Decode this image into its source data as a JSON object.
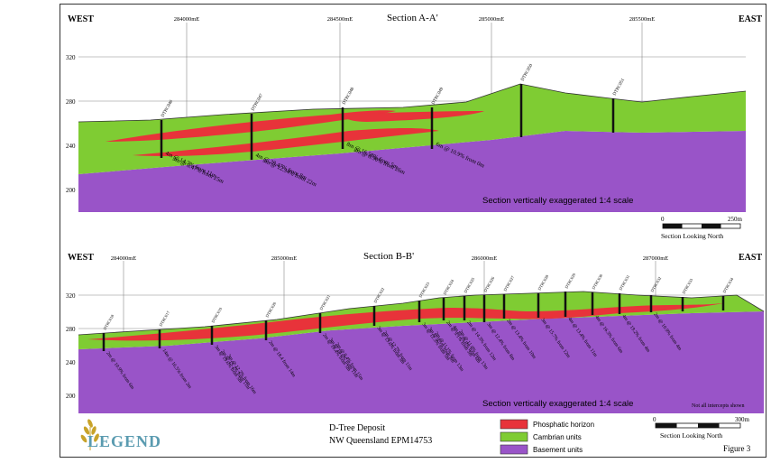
{
  "colors": {
    "phosphatic": "#e8333a",
    "cambrian": "#7fcc33",
    "basement": "#9954c8",
    "frame": "#333333"
  },
  "panel_a": {
    "west": "WEST",
    "east": "EAST",
    "title": "Section A-A'",
    "eastings": [
      "284000mE",
      "284500mE",
      "285000mE",
      "285500mE"
    ],
    "elevations": [
      "320",
      "280",
      "240",
      "200"
    ],
    "exaggeration": "Section vertically exaggerated 1:4 scale",
    "scale_zero": "0",
    "scale_end": "250m",
    "looking": "Section Looking North",
    "holes": [
      {
        "id": "DTRC046",
        "intercepts": [
          "4m @ 14.7% from 11m",
          "3m @ 8.47% from 25m"
        ]
      },
      {
        "id": "DTRC047",
        "intercepts": [
          "4m @ 28.47% from 8m",
          "5m @ 12.34% from 22m"
        ]
      },
      {
        "id": "DTRC048",
        "intercepts": [
          "8m @ 16.58% from 5m",
          "2m @ 8.90% from 26m"
        ]
      },
      {
        "id": "DTRC049",
        "intercepts": [
          "6m @ 10.9% from 0m"
        ]
      },
      {
        "id": "DTRC050",
        "intercepts": []
      },
      {
        "id": "DTRC051",
        "intercepts": []
      }
    ]
  },
  "panel_b": {
    "west": "WEST",
    "east": "EAST",
    "title": "Section B-B'",
    "eastings": [
      "284000mE",
      "285000mE",
      "286000mE",
      "287000mE"
    ],
    "elevations": [
      "320",
      "280",
      "240",
      "200"
    ],
    "exaggeration": "Section vertically exaggerated 1:4 scale",
    "note": "Not all intercepts shown",
    "scale_zero": "0",
    "scale_end": "300m",
    "looking": "Section Looking North",
    "holes": [
      {
        "id": "DTRC018",
        "intercepts": [
          "2m @ 10.9% from 6m"
        ]
      },
      {
        "id": "DTRC017",
        "intercepts": [
          "14m @ 16.5% from 2m"
        ]
      },
      {
        "id": "DTRC019",
        "intercepts": [
          "3m @ 19.6% from 5m",
          "2m @ 15.2% from 11m",
          "3m @ 12.2% from 16m"
        ]
      },
      {
        "id": "DTRC020",
        "intercepts": [
          "2m @ 18.4 from 14m"
        ]
      },
      {
        "id": "DTRC021",
        "intercepts": [
          "2m @ 10.4% from 5m",
          "3m @ 14.6% from 11m",
          "2m @ 8.4% from 15m"
        ]
      },
      {
        "id": "DTRC022",
        "intercepts": [
          "3m @ 13.6% from 3m",
          "2m @ 12.7% from 11m"
        ]
      },
      {
        "id": "DTRC023",
        "intercepts": [
          "3m @ 12.3% from 5m",
          "3m @ 9.5% from 8m",
          "2m @ 11.1% from 13m"
        ]
      },
      {
        "id": "DTRC024",
        "intercepts": [
          "2m @ 9.1% from 3m",
          "4m @ 10.8% from 6m",
          "2m @ 11.0% from 13m"
        ]
      },
      {
        "id": "DTRC025",
        "intercepts": [
          "2m @ 14.3% from 12m"
        ]
      },
      {
        "id": "DTRC026",
        "intercepts": [
          "3m @ 12.4% from 8m"
        ]
      },
      {
        "id": "DTRC027",
        "intercepts": [
          "2m @ 13.4% from 10m"
        ]
      },
      {
        "id": "DTRC028",
        "intercepts": [
          "3m @ 15.7% from 12m"
        ]
      },
      {
        "id": "DTRC029",
        "intercepts": [
          "4m @ 13.4% from 11m"
        ]
      },
      {
        "id": "DTRC030",
        "intercepts": [
          "4m @ 16.3% from 6m"
        ]
      },
      {
        "id": "DTRC031",
        "intercepts": [
          "4m @ 19.2% from 4m"
        ]
      },
      {
        "id": "DTRC032",
        "intercepts": [
          "2m @ 10.9% from 4m"
        ]
      },
      {
        "id": "DTRC033",
        "intercepts": []
      },
      {
        "id": "DTRC034",
        "intercepts": []
      }
    ]
  },
  "legend": {
    "logo_text": "LEGEND",
    "deposit": "D-Tree Deposit",
    "location": "NW Queensland EPM14753",
    "items": [
      {
        "label": "Phosphatic horizon",
        "color": "#e8333a"
      },
      {
        "label": "Cambrian units",
        "color": "#7fcc33"
      },
      {
        "label": "Basement units",
        "color": "#9954c8"
      }
    ],
    "figure": "Figure 3"
  }
}
